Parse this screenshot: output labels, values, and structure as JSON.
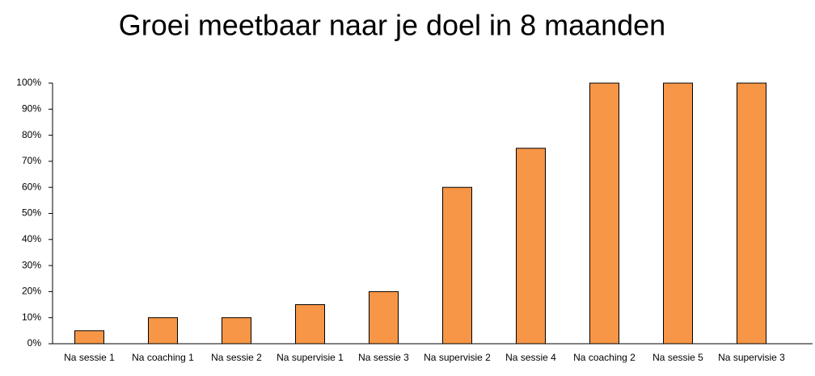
{
  "chart_data": {
    "type": "bar",
    "title": "Groei meetbaar naar je doel in 8 maanden",
    "categories": [
      "Na sessie 1",
      "Na coaching 1",
      "Na sessie 2",
      "Na supervisie 1",
      "Na sessie 3",
      "Na supervisie 2",
      "Na sessie 4",
      "Na coaching 2",
      "Na sessie 5",
      "Na supervisie 3"
    ],
    "values": [
      5,
      10,
      10,
      15,
      20,
      60,
      75,
      100,
      100,
      100
    ],
    "color": "#f79646",
    "ylim": [
      0,
      100
    ],
    "yticks": [
      {
        "value": 0,
        "label": "0%"
      },
      {
        "value": 10,
        "label": "10%"
      },
      {
        "value": 20,
        "label": "20%"
      },
      {
        "value": 30,
        "label": "30%"
      },
      {
        "value": 40,
        "label": "40%"
      },
      {
        "value": 50,
        "label": "50%"
      },
      {
        "value": 60,
        "label": "60%"
      },
      {
        "value": 70,
        "label": "70%"
      },
      {
        "value": 80,
        "label": "80%"
      },
      {
        "value": 90,
        "label": "90%"
      },
      {
        "value": 100,
        "label": "100%"
      }
    ],
    "grid": false
  }
}
